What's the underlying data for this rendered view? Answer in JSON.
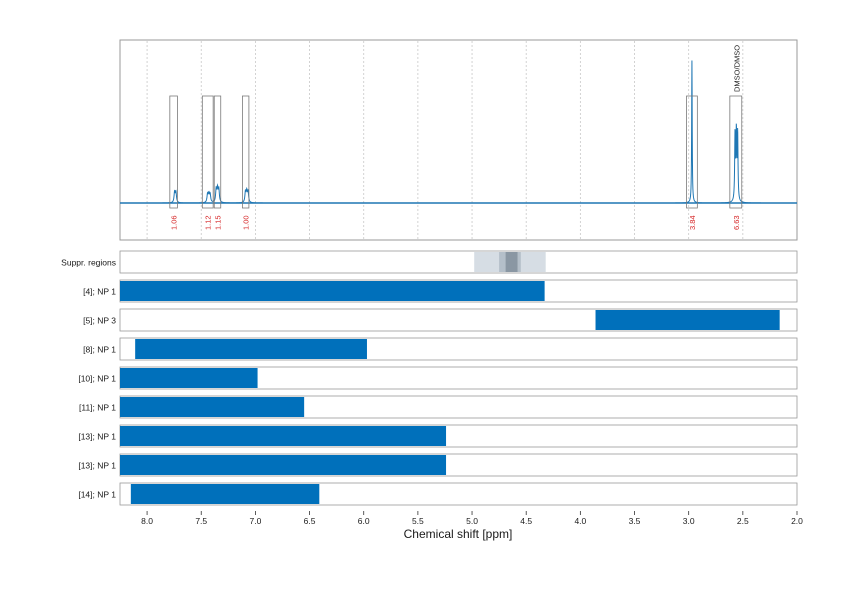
{
  "chart_data": {
    "type": "bar",
    "xlabel": "Chemical shift [ppm]",
    "xlim": [
      8.25,
      2.0
    ],
    "x_ticks": [
      "8.0",
      "7.5",
      "7.0",
      "6.5",
      "6.0",
      "5.5",
      "5.0",
      "4.5",
      "4.0",
      "3.5",
      "3.0",
      "2.5",
      "2.0"
    ],
    "spectrum": {
      "color": "#1f77b4",
      "peaks": [
        {
          "ppm": 7.74,
          "height": 0.09,
          "width": 0.012,
          "multiplet": 2
        },
        {
          "ppm": 7.43,
          "height": 0.07,
          "width": 0.012,
          "multiplet": 3
        },
        {
          "ppm": 7.35,
          "height": 0.11,
          "width": 0.012,
          "multiplet": 3
        },
        {
          "ppm": 7.08,
          "height": 0.09,
          "width": 0.012,
          "multiplet": 3
        },
        {
          "ppm": 2.97,
          "height": 0.95,
          "width": 0.006,
          "multiplet": 1
        },
        {
          "ppm": 2.56,
          "height": 0.58,
          "width": 0.008,
          "multiplet": 3
        }
      ],
      "integrals": [
        {
          "ppm_start": 7.79,
          "ppm_end": 7.72,
          "label": "1.06"
        },
        {
          "ppm_start": 7.49,
          "ppm_end": 7.39,
          "label": "1.12"
        },
        {
          "ppm_start": 7.38,
          "ppm_end": 7.32,
          "label": "1.15"
        },
        {
          "ppm_start": 7.12,
          "ppm_end": 7.06,
          "label": "1.00"
        },
        {
          "ppm_start": 3.02,
          "ppm_end": 2.92,
          "label": "3.84"
        },
        {
          "ppm_start": 2.62,
          "ppm_end": 2.51,
          "label": "6.63"
        }
      ],
      "annotation": {
        "ppm": 2.56,
        "label": "DMSO/DMSO"
      }
    },
    "suppression": {
      "label": "Suppr. regions",
      "bands": [
        {
          "start": 4.98,
          "end": 4.32,
          "color": "#d6dde4"
        },
        {
          "start": 4.75,
          "end": 4.55,
          "color": "#b4bfc9"
        },
        {
          "start": 4.69,
          "end": 4.58,
          "color": "#8a97a3"
        }
      ]
    },
    "categories": [
      "[4]; NP 1",
      "[5]; NP 3",
      "[8]; NP 1",
      "[10]; NP 1",
      "[11]; NP 1",
      "[13]; NP 1",
      "[13]; NP 1",
      "[14]; NP 1"
    ],
    "ranges": [
      [
        8.25,
        4.33
      ],
      [
        3.86,
        2.16
      ],
      [
        8.11,
        5.97
      ],
      [
        8.25,
        6.98
      ],
      [
        8.25,
        6.55
      ],
      [
        8.25,
        5.24
      ],
      [
        8.25,
        5.24
      ],
      [
        8.15,
        6.41
      ]
    ],
    "bar_color": "#0070bb",
    "grid": true
  }
}
